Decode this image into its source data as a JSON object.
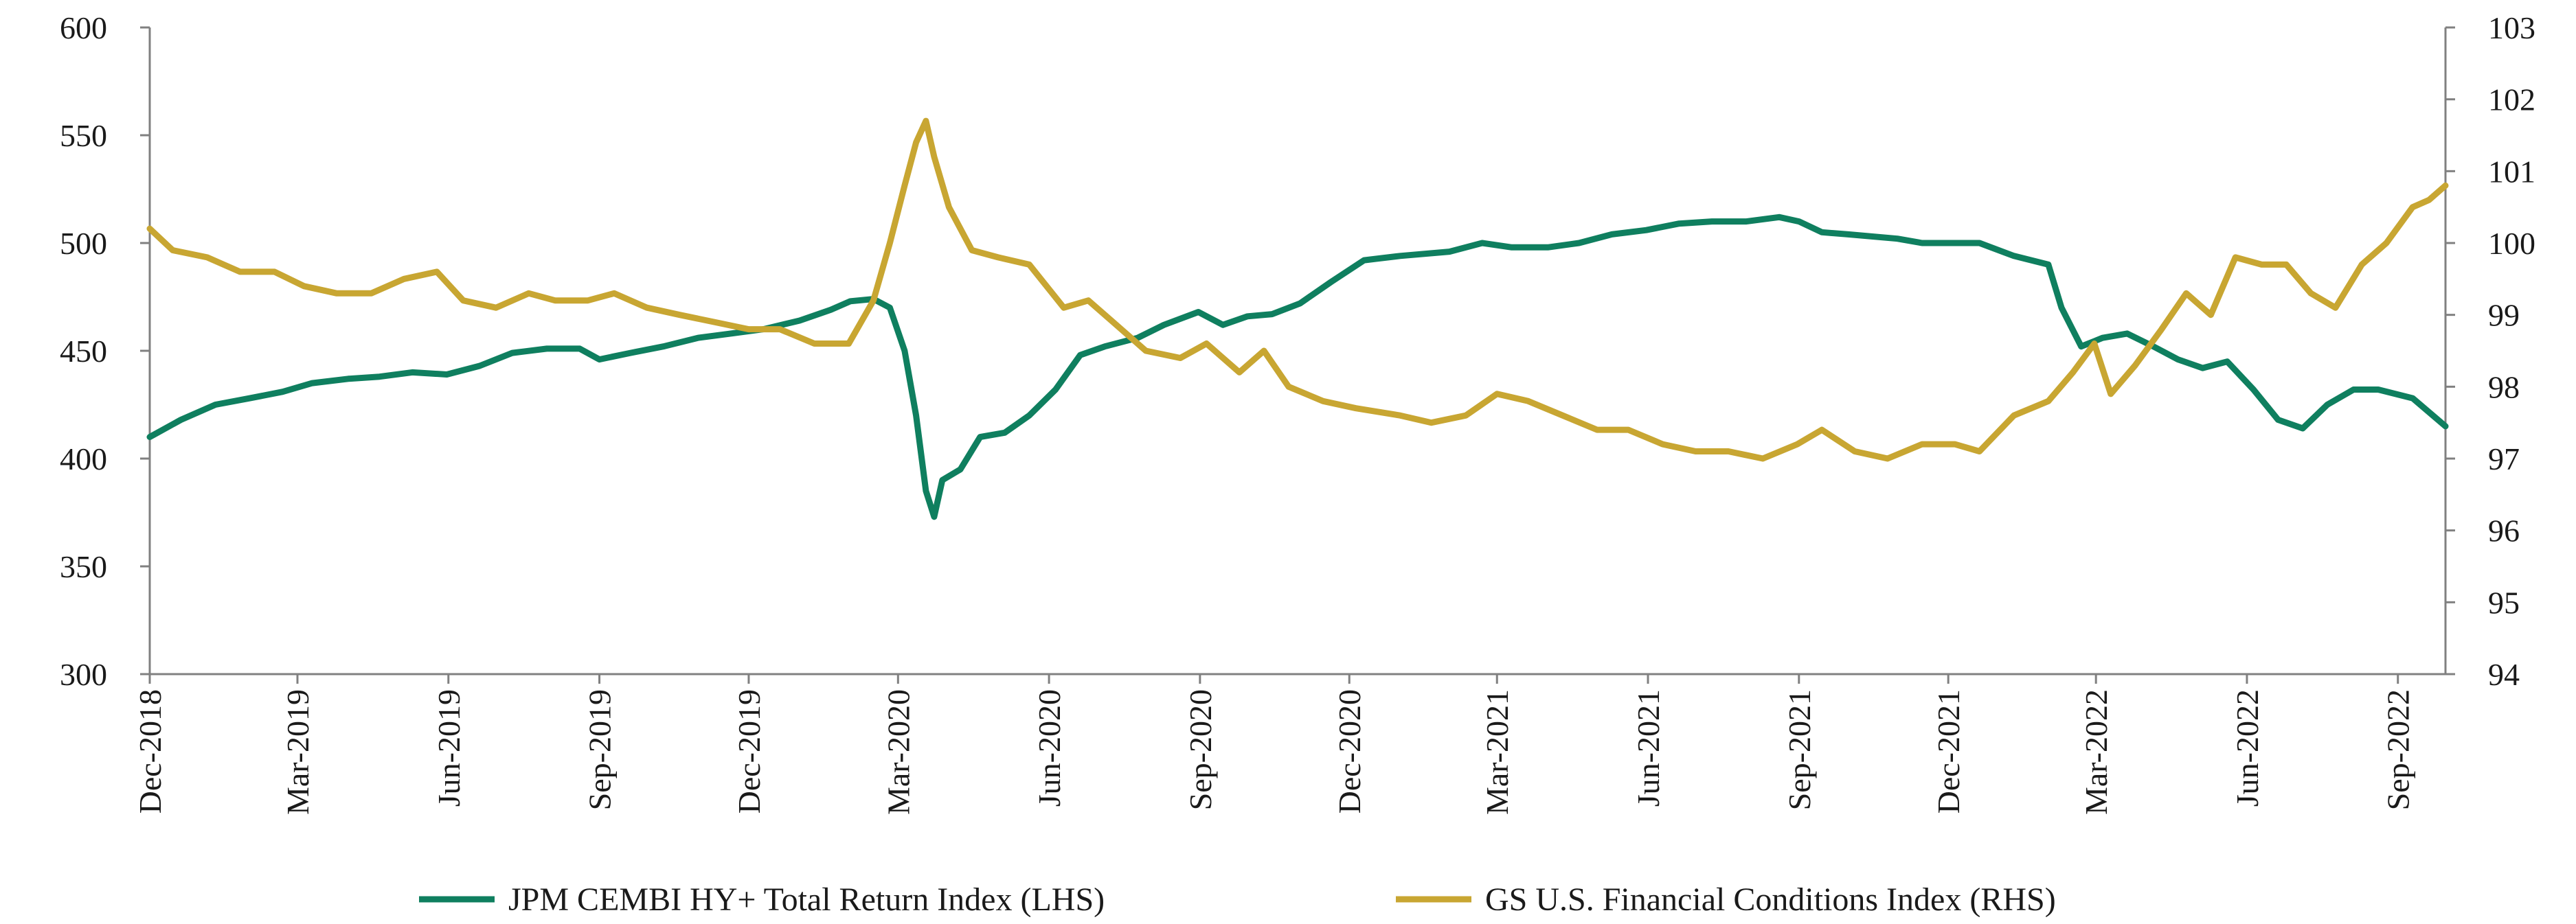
{
  "chart_data": {
    "type": "line",
    "title": "",
    "xlabel": "",
    "ylabel_left": "",
    "ylabel_right": "",
    "x_range": [
      "2018-12-01",
      "2022-09-30"
    ],
    "y_left": {
      "lim": [
        300,
        600
      ],
      "ticks": [
        300,
        350,
        400,
        450,
        500,
        550,
        600
      ]
    },
    "y_right": {
      "lim": [
        94,
        103
      ],
      "ticks": [
        94,
        95,
        96,
        97,
        98,
        99,
        100,
        101,
        102,
        103
      ]
    },
    "x_ticks": [
      {
        "date": "2018-12-01",
        "label": "Dec-2018"
      },
      {
        "date": "2019-03-01",
        "label": "Mar-2019"
      },
      {
        "date": "2019-06-01",
        "label": "Jun-2019"
      },
      {
        "date": "2019-09-01",
        "label": "Sep-2019"
      },
      {
        "date": "2019-12-01",
        "label": "Dec-2019"
      },
      {
        "date": "2020-03-01",
        "label": "Mar-2020"
      },
      {
        "date": "2020-06-01",
        "label": "Jun-2020"
      },
      {
        "date": "2020-09-01",
        "label": "Sep-2020"
      },
      {
        "date": "2020-12-01",
        "label": "Dec-2020"
      },
      {
        "date": "2021-03-01",
        "label": "Mar-2021"
      },
      {
        "date": "2021-06-01",
        "label": "Jun-2021"
      },
      {
        "date": "2021-09-01",
        "label": "Sep-2021"
      },
      {
        "date": "2021-12-01",
        "label": "Dec-2021"
      },
      {
        "date": "2022-03-01",
        "label": "Mar-2022"
      },
      {
        "date": "2022-06-01",
        "label": "Jun-2022"
      },
      {
        "date": "2022-09-01",
        "label": "Sep-2022"
      }
    ],
    "grid": false,
    "legend_position": "bottom",
    "series": [
      {
        "name": "JPM CEMBI HY+ Total Return Index (LHS)",
        "axis": "left",
        "color": "#0f7f5f",
        "points": [
          [
            "2018-12-01",
            410
          ],
          [
            "2018-12-20",
            418
          ],
          [
            "2019-01-10",
            425
          ],
          [
            "2019-01-31",
            428
          ],
          [
            "2019-02-20",
            431
          ],
          [
            "2019-03-10",
            435
          ],
          [
            "2019-04-01",
            437
          ],
          [
            "2019-04-20",
            438
          ],
          [
            "2019-05-10",
            440
          ],
          [
            "2019-05-31",
            439
          ],
          [
            "2019-06-20",
            443
          ],
          [
            "2019-07-10",
            449
          ],
          [
            "2019-07-31",
            451
          ],
          [
            "2019-08-20",
            451
          ],
          [
            "2019-09-01",
            446
          ],
          [
            "2019-09-20",
            449
          ],
          [
            "2019-10-10",
            452
          ],
          [
            "2019-10-31",
            456
          ],
          [
            "2019-11-20",
            458
          ],
          [
            "2019-12-10",
            460
          ],
          [
            "2020-01-01",
            464
          ],
          [
            "2020-01-20",
            469
          ],
          [
            "2020-02-01",
            473
          ],
          [
            "2020-02-15",
            474
          ],
          [
            "2020-02-25",
            470
          ],
          [
            "2020-03-05",
            450
          ],
          [
            "2020-03-12",
            420
          ],
          [
            "2020-03-18",
            385
          ],
          [
            "2020-03-23",
            373
          ],
          [
            "2020-03-28",
            390
          ],
          [
            "2020-04-08",
            395
          ],
          [
            "2020-04-20",
            410
          ],
          [
            "2020-05-05",
            412
          ],
          [
            "2020-05-20",
            420
          ],
          [
            "2020-06-05",
            432
          ],
          [
            "2020-06-20",
            448
          ],
          [
            "2020-07-05",
            452
          ],
          [
            "2020-07-25",
            456
          ],
          [
            "2020-08-10",
            462
          ],
          [
            "2020-08-31",
            468
          ],
          [
            "2020-09-15",
            462
          ],
          [
            "2020-09-30",
            466
          ],
          [
            "2020-10-15",
            467
          ],
          [
            "2020-11-01",
            472
          ],
          [
            "2020-11-20",
            482
          ],
          [
            "2020-12-10",
            492
          ],
          [
            "2021-01-01",
            494
          ],
          [
            "2021-01-31",
            496
          ],
          [
            "2021-02-20",
            500
          ],
          [
            "2021-03-10",
            498
          ],
          [
            "2021-04-01",
            498
          ],
          [
            "2021-04-20",
            500
          ],
          [
            "2021-05-10",
            504
          ],
          [
            "2021-05-31",
            506
          ],
          [
            "2021-06-20",
            509
          ],
          [
            "2021-07-10",
            510
          ],
          [
            "2021-07-31",
            510
          ],
          [
            "2021-08-20",
            512
          ],
          [
            "2021-09-01",
            510
          ],
          [
            "2021-09-15",
            505
          ],
          [
            "2021-10-01",
            504
          ],
          [
            "2021-10-31",
            502
          ],
          [
            "2021-11-15",
            500
          ],
          [
            "2021-12-01",
            500
          ],
          [
            "2021-12-20",
            500
          ],
          [
            "2022-01-10",
            494
          ],
          [
            "2022-01-31",
            490
          ],
          [
            "2022-02-08",
            470
          ],
          [
            "2022-02-20",
            452
          ],
          [
            "2022-03-05",
            456
          ],
          [
            "2022-03-20",
            458
          ],
          [
            "2022-04-05",
            452
          ],
          [
            "2022-04-20",
            446
          ],
          [
            "2022-05-05",
            442
          ],
          [
            "2022-05-20",
            445
          ],
          [
            "2022-06-05",
            432
          ],
          [
            "2022-06-20",
            418
          ],
          [
            "2022-07-05",
            414
          ],
          [
            "2022-07-20",
            425
          ],
          [
            "2022-08-05",
            432
          ],
          [
            "2022-08-20",
            432
          ],
          [
            "2022-09-10",
            428
          ],
          [
            "2022-09-30",
            415
          ]
        ]
      },
      {
        "name": "GS U.S. Financial Conditions Index (RHS)",
        "axis": "right",
        "color": "#c8a632",
        "points": [
          [
            "2018-12-01",
            100.2
          ],
          [
            "2018-12-15",
            99.9
          ],
          [
            "2019-01-05",
            99.8
          ],
          [
            "2019-01-25",
            99.6
          ],
          [
            "2019-02-15",
            99.6
          ],
          [
            "2019-03-05",
            99.4
          ],
          [
            "2019-03-25",
            99.3
          ],
          [
            "2019-04-15",
            99.3
          ],
          [
            "2019-05-05",
            99.5
          ],
          [
            "2019-05-25",
            99.6
          ],
          [
            "2019-06-10",
            99.2
          ],
          [
            "2019-06-30",
            99.1
          ],
          [
            "2019-07-20",
            99.3
          ],
          [
            "2019-08-05",
            99.2
          ],
          [
            "2019-08-25",
            99.2
          ],
          [
            "2019-09-10",
            99.3
          ],
          [
            "2019-09-30",
            99.1
          ],
          [
            "2019-10-20",
            99.0
          ],
          [
            "2019-11-10",
            98.9
          ],
          [
            "2019-12-01",
            98.8
          ],
          [
            "2019-12-20",
            98.8
          ],
          [
            "2020-01-10",
            98.6
          ],
          [
            "2020-01-31",
            98.6
          ],
          [
            "2020-02-15",
            99.2
          ],
          [
            "2020-02-25",
            100.0
          ],
          [
            "2020-03-05",
            100.8
          ],
          [
            "2020-03-12",
            101.4
          ],
          [
            "2020-03-18",
            101.7
          ],
          [
            "2020-03-23",
            101.2
          ],
          [
            "2020-04-01",
            100.5
          ],
          [
            "2020-04-15",
            99.9
          ],
          [
            "2020-05-01",
            99.8
          ],
          [
            "2020-05-20",
            99.7
          ],
          [
            "2020-06-10",
            99.1
          ],
          [
            "2020-06-25",
            99.2
          ],
          [
            "2020-07-10",
            98.9
          ],
          [
            "2020-07-30",
            98.5
          ],
          [
            "2020-08-20",
            98.4
          ],
          [
            "2020-09-05",
            98.6
          ],
          [
            "2020-09-25",
            98.2
          ],
          [
            "2020-10-10",
            98.5
          ],
          [
            "2020-10-25",
            98.0
          ],
          [
            "2020-11-15",
            97.8
          ],
          [
            "2020-12-05",
            97.7
          ],
          [
            "2021-01-01",
            97.6
          ],
          [
            "2021-01-20",
            97.5
          ],
          [
            "2021-02-10",
            97.6
          ],
          [
            "2021-03-01",
            97.9
          ],
          [
            "2021-03-20",
            97.8
          ],
          [
            "2021-04-10",
            97.6
          ],
          [
            "2021-05-01",
            97.4
          ],
          [
            "2021-05-20",
            97.4
          ],
          [
            "2021-06-10",
            97.2
          ],
          [
            "2021-06-30",
            97.1
          ],
          [
            "2021-07-20",
            97.1
          ],
          [
            "2021-08-10",
            97.0
          ],
          [
            "2021-08-31",
            97.2
          ],
          [
            "2021-09-15",
            97.4
          ],
          [
            "2021-10-05",
            97.1
          ],
          [
            "2021-10-25",
            97.0
          ],
          [
            "2021-11-15",
            97.2
          ],
          [
            "2021-12-05",
            97.2
          ],
          [
            "2021-12-20",
            97.1
          ],
          [
            "2022-01-10",
            97.6
          ],
          [
            "2022-01-31",
            97.8
          ],
          [
            "2022-02-15",
            98.2
          ],
          [
            "2022-02-28",
            98.6
          ],
          [
            "2022-03-10",
            97.9
          ],
          [
            "2022-03-25",
            98.3
          ],
          [
            "2022-04-10",
            98.8
          ],
          [
            "2022-04-25",
            99.3
          ],
          [
            "2022-05-10",
            99.0
          ],
          [
            "2022-05-25",
            99.8
          ],
          [
            "2022-06-10",
            99.7
          ],
          [
            "2022-06-25",
            99.7
          ],
          [
            "2022-07-10",
            99.3
          ],
          [
            "2022-07-25",
            99.1
          ],
          [
            "2022-08-10",
            99.7
          ],
          [
            "2022-08-25",
            100.0
          ],
          [
            "2022-09-10",
            100.5
          ],
          [
            "2022-09-20",
            100.6
          ],
          [
            "2022-09-30",
            100.8
          ]
        ]
      }
    ]
  }
}
